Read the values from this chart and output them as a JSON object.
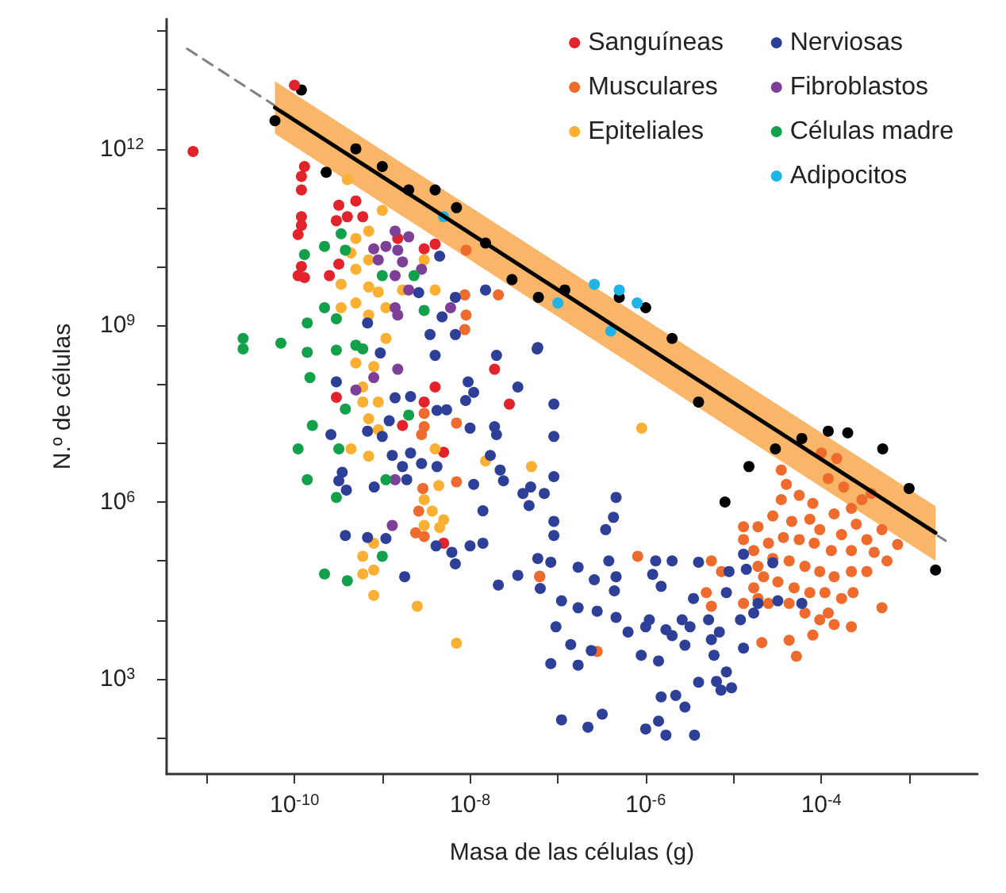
{
  "chart_data": {
    "type": "scatter",
    "xlabel": "Masa de las células (g)",
    "ylabel": "N.º de células",
    "log": "xy",
    "grid": false,
    "legend": "top right",
    "marker": "circle",
    "xlim": [
      3.5e-12,
      0.006
    ],
    "ylim": [
      24,
      160000000000000.0
    ],
    "xticks": [
      {
        "value": 1e-11,
        "label": null
      },
      {
        "value": 1e-10,
        "label": "10$^{-10}$"
      },
      {
        "value": 1e-09,
        "label": null
      },
      {
        "value": 1e-08,
        "label": "10$^{-8}$"
      },
      {
        "value": 1e-07,
        "label": null
      },
      {
        "value": 1e-06,
        "label": "10$^{-6}$"
      },
      {
        "value": 1e-05,
        "label": null
      },
      {
        "value": 0.0001,
        "label": "10$^{-4}$"
      },
      {
        "value": 0.001,
        "label": null
      }
    ],
    "yticks": [
      {
        "value": 100,
        "label": null
      },
      {
        "value": 1000,
        "label": "10$^{3}$"
      },
      {
        "value": 10000.0,
        "label": null
      },
      {
        "value": 100000.0,
        "label": null
      },
      {
        "value": 1000000.0,
        "label": "10$^{6}$"
      },
      {
        "value": 10000000.0,
        "label": null
      },
      {
        "value": 100000000.0,
        "label": null
      },
      {
        "value": 1000000000.0,
        "label": "10$^{9}$"
      },
      {
        "value": 10000000000.0,
        "label": null
      },
      {
        "value": 100000000000.0,
        "label": null
      },
      {
        "value": 1000000000000.0,
        "label": "10$^{12}$"
      },
      {
        "value": 10000000000000.0,
        "label": null
      },
      {
        "value": 100000000000000.0,
        "label": null
      }
    ],
    "series": [
      {
        "type": "line",
        "color": "#808080",
        "line_style": "dashed",
        "marker": "none",
        "x": [
          6e-12,
          0.0026
        ],
        "values": [
          50000000000000.0,
          220000.0
        ]
      },
      {
        "type": "line",
        "color": "#000000",
        "line_style": "solid",
        "marker": "none",
        "x": [
          6e-11,
          0.002
        ],
        "values": [
          5000000000000.0,
          300000.0
        ],
        "lower": [
          1800000000000.0,
          100000.0
        ],
        "upper": [
          14000000000000.0,
          850000.0
        ]
      },
      {
        "color": "#000000",
        "x": [
          1.2e-10,
          6e-11,
          2.3e-10,
          5e-10,
          1e-09,
          2e-09,
          4e-09,
          7e-09,
          1.5e-08,
          3e-08,
          6e-08,
          1.2e-07,
          5e-07,
          1e-06,
          2e-06,
          4e-06,
          1.5e-05,
          8e-06,
          3e-05,
          6e-05,
          0.00012,
          0.0002,
          0.0005,
          0.001,
          0.002
        ],
        "values": [
          10000000000000.0,
          3000000000000.0,
          400000000000.0,
          1000000000000.0,
          500000000000.0,
          200000000000.0,
          200000000000.0,
          100000000000.0,
          25000000000.0,
          6000000000.0,
          3000000000.0,
          4000000000.0,
          3000000000.0,
          2000000000.0,
          600000000.0,
          50000000.0,
          4000000.0,
          1000000.0,
          8000000.0,
          12000000.0,
          16000000.0,
          15000000.0,
          8000000.0,
          1700000.0,
          70000.0
        ]
      },
      {
        "name": "Sanguíneas",
        "color": "#e3232b",
        "x": [
          1e-10,
          7e-12,
          1.3e-10,
          1.2e-10,
          1.2e-10,
          3.2e-10,
          5e-10,
          3e-10,
          4e-10,
          6e-10,
          1.2e-10,
          1.2e-10,
          1.1e-10,
          1.2e-10,
          1.1e-10,
          1.3e-10,
          2.5e-10,
          3.2e-10,
          1.5e-09,
          3e-09,
          4e-09,
          1.9e-08,
          2.8e-08,
          5e-09,
          5e-09,
          3e-09,
          4e-09,
          1.7e-09,
          3e-10
        ],
        "values": [
          12000000000000.0,
          900000000000.0,
          500000000000.0,
          340000000000.0,
          200000000000.0,
          110000000000.0,
          130000000000.0,
          60000000000.0,
          70000000000.0,
          70000000000.0,
          70000000000.0,
          50000000000.0,
          35000000000.0,
          10000000000.0,
          7000000000.0,
          6500000000.0,
          7000000000.0,
          11000000000.0,
          30000000000.0,
          20000000000.0,
          24000000000.0,
          180000000.0,
          46000000.0,
          7000000.0,
          200000.0,
          50000000.0,
          90000000.0,
          20000000.0,
          60000000.0
        ]
      },
      {
        "name": "Musculares",
        "color": "#ee6b2d",
        "x": [
          3.5e-05,
          4e-05,
          3.5e-05,
          5.6e-05,
          8e-05,
          0.0001,
          0.00015,
          0.00018,
          0.00012,
          1.3e-05,
          1.9e-05,
          2.8e-05,
          4.6e-05,
          7.4e-05,
          9.6e-05,
          0.00014,
          0.00022,
          0.00029,
          0.00037,
          0.00025,
          0.00017,
          0.00033,
          0.00049,
          0.00074,
          0.00056,
          0.0004,
          0.00022,
          0.00013,
          8.3e-05,
          5.6e-05,
          3.7e-05,
          2.5e-05,
          1.7e-05,
          1.3e-05,
          1.9e-05,
          2.8e-05,
          4.3e-05,
          6.5e-05,
          9.6e-05,
          0.00014,
          0.00022,
          0.00033,
          0.00023,
          0.00017,
          0.00011,
          7.4e-05,
          4.9e-05,
          3.2e-05,
          2.2e-05,
          1.7e-05,
          2.5e-05,
          4.3e-05,
          6.5e-05,
          9.6e-05,
          0.00014,
          0.00022,
          0.00049,
          8e-05,
          4.3e-05,
          2.1e-05,
          5.2e-05,
          5.6e-06,
          7.3e-06,
          4.9e-06,
          5.6e-06,
          8.1e-07,
          6.2e-08,
          2.8e-07,
          1.3e-05,
          0.00012,
          1.9e-05,
          9e-09,
          2.1e-08,
          8.7e-09,
          9e-09,
          8.7e-09,
          3e-09,
          3e-09,
          2.8e-09,
          7e-09,
          7e-09,
          2.9e-09,
          2.6e-09,
          2.4e-09,
          3e-09,
          6.2e-08
        ],
        "values": [
          3500000.0,
          2000000.0,
          1100000.0,
          1300000.0,
          950000.0,
          6800000.0,
          5500000.0,
          1800000.0,
          2500000.0,
          380000.0,
          380000.0,
          580000.0,
          470000.0,
          510000.0,
          340000.0,
          630000.0,
          780000.0,
          1100000.0,
          1400000.0,
          420000.0,
          280000.0,
          230000.0,
          340000.0,
          190000.0,
          100000.0,
          140000.0,
          150000.0,
          150000.0,
          200000.0,
          230000.0,
          250000.0,
          200000.0,
          150000.0,
          230000.0,
          81000.0,
          110000.0,
          100000.0,
          81000.0,
          66000.0,
          54000.0,
          66000.0,
          66000.0,
          29000.0,
          23000.0,
          29000.0,
          29000.0,
          35000.0,
          44000.0,
          54000.0,
          35000.0,
          19000.0,
          19000.0,
          13000.0,
          10000.0,
          8300.0,
          7600.0,
          16000.0,
          5500.0,
          4500.0,
          4100.0,
          2400.0,
          100000.0,
          66000.0,
          29000.0,
          17000.0,
          120000.0,
          54000.0,
          2900.0,
          19000.0,
          13000.0,
          23000.0,
          19000000000.0,
          3300000000.0,
          3300000000.0,
          1500000000.0,
          850000000.0,
          32000000.0,
          19000000.0,
          14000000.0,
          22000000.0,
          2200000.0,
          1700000.0,
          700000.0,
          300000.0,
          260000.0,
          55000.0
        ]
      },
      {
        "name": "Epiteliales",
        "color": "#fbb034",
        "x": [
          4e-10,
          1e-09,
          7e-10,
          5e-10,
          4.4e-10,
          7e-10,
          5e-10,
          3.4e-10,
          7e-10,
          9e-10,
          5e-10,
          3.4e-10,
          7e-10,
          1.1e-09,
          1.7e-09,
          3e-09,
          4e-09,
          1.1e-09,
          8e-10,
          5e-10,
          6e-10,
          9e-10,
          6e-10,
          7e-10,
          9e-10,
          4.4e-10,
          7e-10,
          4e-09,
          4.4e-09,
          3e-09,
          3.7e-09,
          3e-09,
          4.5e-09,
          5e-09,
          8e-10,
          6e-10,
          8e-10,
          6e-10,
          8e-10,
          2.5e-09,
          7e-09,
          5e-08,
          1.5e-08,
          9e-07
        ],
        "values": [
          300000000000.0,
          90000000000.0,
          40000000000.0,
          30000000000.0,
          17000000000.0,
          13000000000.0,
          9000000000.0,
          5000000000.0,
          4500000000.0,
          3700000000.0,
          2400000000.0,
          2000000000.0,
          1500000000.0,
          2000000000.0,
          4000000000.0,
          13000000000.0,
          4000000000.0,
          600000000.0,
          200000000.0,
          230000000.0,
          90000000.0,
          50000000.0,
          50000000.0,
          26000000.0,
          17000000.0,
          8000000.0,
          6000000.0,
          8000000.0,
          1900000.0,
          1100000.0,
          700000.0,
          400000.0,
          370000.0,
          500000.0,
          200000.0,
          120000.0,
          70000.0,
          60000.0,
          26000.0,
          17000.0,
          4000.0,
          4000000.0,
          5000000.0,
          18000000.0
        ]
      },
      {
        "name": "Nerviosas",
        "color": "#2e3f98",
        "x": [
          5.8e-08,
          9e-08,
          9e-08,
          9e-08,
          7e-08,
          4.9e-08,
          4.6e-07,
          4.3e-07,
          3.5e-07,
          9e-08,
          9e-08,
          5.9e-08,
          8.3e-08,
          1.7e-07,
          2.6e-07,
          3.8e-07,
          4.4e-07,
          1.1e-07,
          1.7e-07,
          2.8e-07,
          4.6e-07,
          9.5e-08,
          1.4e-07,
          8.3e-08,
          1.7e-07,
          2.4e-07,
          6.3e-07,
          8.9e-07,
          1.4e-06,
          1e-06,
          1.7e-06,
          1.3e-06,
          2e-06,
          1.2e-06,
          1.5e-06,
          1.1e-06,
          2e-06,
          2.6e-06,
          3.2e-06,
          2.8e-06,
          4e-06,
          3.5e-06,
          5.2e-06,
          5.6e-06,
          6e-06,
          8.3e-06,
          6.9e-06,
          8.9e-06,
          1.2e-05,
          1.3e-05,
          1.4e-05,
          1.7e-05,
          1.9e-05,
          2.8e-05,
          3.2e-05,
          6e-05,
          1.3e-05,
          8.3e-06,
          9.5e-06,
          7.2e-06,
          6.4e-06,
          2.8e-06,
          4e-06,
          1.5e-06,
          2.2e-06,
          1.4e-06,
          1e-06,
          1.7e-06,
          3.6e-06,
          3.2e-07,
          2.2e-07,
          1.1e-07,
          6.3e-08,
          4.6e-07,
          4.5e-09,
          2.6e-09,
          6.8e-09,
          1.5e-08,
          4.8e-09,
          6.8e-09,
          6.8e-10,
          2e-08,
          5.9e-08,
          9.5e-10,
          3.5e-09,
          4e-09,
          9.5e-09,
          3.5e-08,
          3e-10,
          1.4e-09,
          2.1e-09,
          4.2e-09,
          5.4e-09,
          8.9e-09,
          1.1e-08,
          2.6e-10,
          6.8e-10,
          1e-09,
          1.2e-09,
          1e-08,
          1.9e-08,
          2e-08,
          1.3e-09,
          2.1e-09,
          2.8e-09,
          4.2e-09,
          1.7e-09,
          1.9e-09,
          3.5e-10,
          3.2e-10,
          3.9e-10,
          8.1e-10,
          1.1e-08,
          1.7e-08,
          2.2e-08,
          2.4e-08,
          4e-08,
          4.7e-08,
          1.4e-08,
          3.8e-10,
          6.8e-10,
          1.1e-09,
          4.1e-09,
          6.2e-09,
          6.8e-09,
          1e-08,
          1.4e-08,
          1.8e-09,
          2.1e-08,
          3.5e-08
        ],
        "values": [
          400000000.0,
          46000000.0,
          13000000.0,
          2700000.0,
          1400000.0,
          1800000.0,
          1200000.0,
          550000.0,
          340000.0,
          470000.0,
          270000.0,
          110000.0,
          95000.0,
          78000.0,
          48000.0,
          100000.0,
          31000.0,
          21000.0,
          16000.0,
          14000.0,
          11000.0,
          7600.0,
          3800.0,
          1800.0,
          1700.0,
          3000.0,
          6200.0,
          2500.0,
          2000.0,
          7600.0,
          6800.0,
          100000.0,
          100000.0,
          59000.0,
          37000.0,
          10000.0,
          5400.0,
          10000.0,
          7600.0,
          3700.0,
          95000.0,
          23000.0,
          10000.0,
          4600.0,
          2500.0,
          29000.0,
          6200.0,
          66000.0,
          10000.0,
          130000.0,
          72000.0,
          13000.0,
          19000.0,
          93000.0,
          21000.0,
          19000.0,
          3300.0,
          1300.0,
          700,
          640,
          900,
          330,
          870,
          490,
          520,
          190,
          140,
          110,
          110,
          250,
          150,
          200,
          34000.0,
          54000.0,
          15000000000.0,
          3600000000.0,
          3000000000.0,
          4000000000.0,
          1400000000.0,
          700000000.0,
          1100000000.0,
          310000000.0,
          420000000.0,
          340000000.0,
          700000000.0,
          310000000.0,
          110000000.0,
          90000000.0,
          110000000.0,
          59000000.0,
          62000000.0,
          36000000.0,
          37000000.0,
          53000000.0,
          73000000.0,
          14000000.0,
          16000000.0,
          13000000.0,
          24000000.0,
          18000000.0,
          19000000.0,
          14000000.0,
          6200000.0,
          6800000.0,
          4500000.0,
          4000000.0,
          4000000.0,
          2400000.0,
          3200000.0,
          2300000.0,
          1600000.0,
          1800000.0,
          2000000.0,
          6200000.0,
          3500000.0,
          2300000.0,
          1400000.0,
          870000.0,
          710000.0,
          270000.0,
          250000.0,
          240000.0,
          180000.0,
          140000.0,
          89000.0,
          180000.0,
          200000.0,
          54000.0,
          39000.0,
          57000.0
        ]
      },
      {
        "name": "Fibroblastos",
        "color": "#7d3f98",
        "x": [
          1.4e-09,
          2e-09,
          8e-10,
          1.1e-09,
          1.5e-09,
          9e-10,
          1.7e-09,
          2.8e-09,
          1.4e-09,
          2e-09,
          1.4e-09,
          1.5e-09,
          6e-09,
          1.5e-09,
          8e-10,
          5e-10,
          1.4e-09,
          1.3e-09
        ],
        "values": [
          40000000000.0,
          32000000000.0,
          20000000000.0,
          22000000000.0,
          19000000000.0,
          13000000000.0,
          12000000000.0,
          9000000000.0,
          7000000000.0,
          4000000000.0,
          2000000000.0,
          1500000000.0,
          2000000000.0,
          180000000.0,
          130000000.0,
          80000000.0,
          2400000.0,
          400000.0
        ]
      },
      {
        "name": "Células madre",
        "color": "#12a04b",
        "x": [
          2.6e-11,
          2.6e-11,
          7e-11,
          1.4e-10,
          1.5e-10,
          1.4e-10,
          2.2e-10,
          2.2e-10,
          1.3e-10,
          3.4e-10,
          3e-10,
          3.8e-10,
          1e-09,
          2.3e-09,
          5e-10,
          3e-10,
          6e-10,
          3e-09,
          1.6e-10,
          1.1e-10,
          1.4e-10,
          3e-10,
          2.2e-10,
          4e-10,
          1e-09,
          1.1e-09,
          2e-09,
          3.2e-10,
          3.8e-10
        ],
        "values": [
          600000000.0,
          400000000.0,
          500000000.0,
          350000000.0,
          130000000.0,
          1100000000.0,
          2000000000.0,
          22000000000.0,
          16000000000.0,
          36000000000.0,
          1300000000.0,
          19000000000.0,
          7000000000.0,
          7000000000.0,
          460000000.0,
          380000000.0,
          400000000.0,
          1800000000.0,
          20000000.0,
          8000000.0,
          2400000.0,
          1200000.0,
          60000.0,
          46000.0,
          120000.0,
          2400000.0,
          30000000.0,
          8000000.0,
          38000000.0
        ]
      },
      {
        "name": "Adipocitos",
        "color": "#1fb4e6",
        "x": [
          5e-09,
          1e-07,
          2.6e-07,
          5e-07,
          8e-07,
          4e-07
        ],
        "values": [
          70000000000.0,
          2400000000.0,
          5000000000.0,
          4000000000.0,
          2400000000.0,
          800000000.0
        ]
      }
    ]
  }
}
